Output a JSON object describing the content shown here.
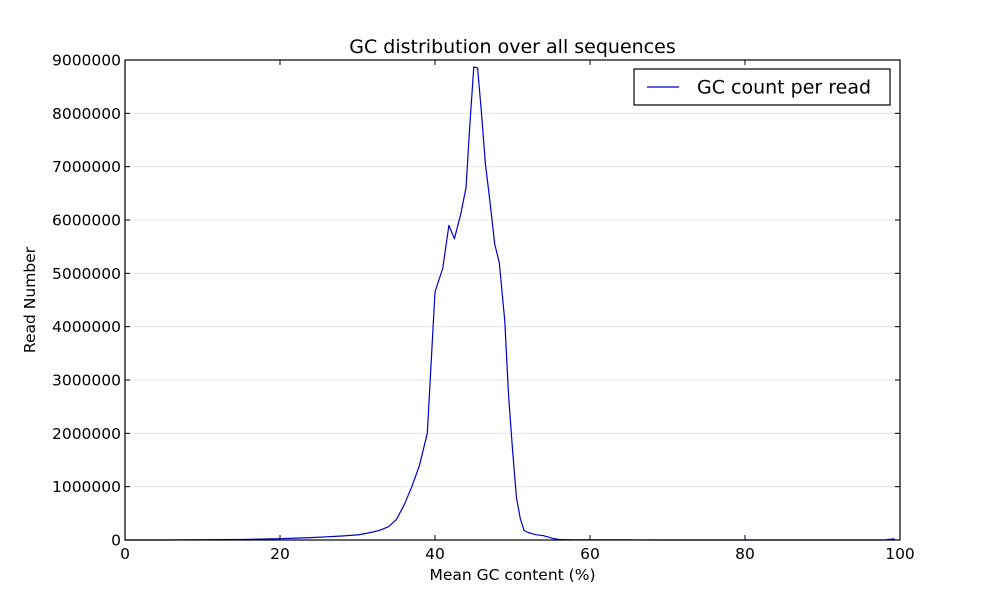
{
  "chart_data": {
    "type": "line",
    "title": "GC distribution over all sequences",
    "xlabel": "Mean GC content (%)",
    "ylabel": "Read Number",
    "xlim": [
      0,
      100
    ],
    "ylim": [
      0,
      9000000
    ],
    "xticks": [
      0,
      20,
      40,
      60,
      80,
      100
    ],
    "xtick_labels": [
      "0",
      "20",
      "40",
      "60",
      "80",
      "100"
    ],
    "yticks": [
      0,
      1000000,
      2000000,
      3000000,
      4000000,
      5000000,
      6000000,
      7000000,
      8000000,
      9000000
    ],
    "ytick_labels": [
      "0",
      "1000000",
      "2000000",
      "3000000",
      "4000000",
      "5000000",
      "6000000",
      "7000000",
      "8000000",
      "9000000"
    ],
    "grid": true,
    "legend": {
      "position": "top-right",
      "entries": [
        "GC count per read"
      ]
    },
    "line_color": "#0000cc",
    "series": [
      {
        "name": "GC count per read",
        "x": [
          0,
          5,
          10,
          15,
          20,
          22,
          24,
          26,
          28,
          30,
          31,
          32,
          33,
          34,
          35,
          36,
          37,
          38,
          39,
          40,
          41,
          41.8,
          42.5,
          43.3,
          44,
          44.5,
          45,
          45.5,
          46,
          46.5,
          47,
          47.7,
          48.3,
          49,
          49.5,
          50,
          50.5,
          51,
          51.5,
          52,
          52.5,
          53,
          54,
          55,
          55.5,
          56,
          57,
          58,
          60,
          65,
          70,
          75,
          80,
          85,
          90,
          95,
          98,
          99.3
        ],
        "y": [
          0,
          0,
          5000,
          10000,
          25000,
          35000,
          45000,
          60000,
          75000,
          95000,
          120000,
          150000,
          190000,
          250000,
          380000,
          650000,
          1000000,
          1400000,
          2000000,
          4650000,
          5100000,
          5900000,
          5650000,
          6100000,
          6600000,
          7800000,
          8870000,
          8850000,
          8000000,
          7050000,
          6450000,
          5550000,
          5200000,
          4100000,
          2700000,
          1700000,
          800000,
          400000,
          180000,
          140000,
          120000,
          100000,
          80000,
          40000,
          20000,
          10000,
          5000,
          3000,
          2000,
          1000,
          500,
          500,
          200,
          100,
          100,
          100,
          100,
          20000
        ]
      }
    ]
  }
}
